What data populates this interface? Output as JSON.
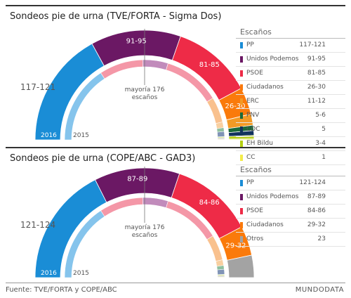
{
  "chart_data": [
    {
      "type": "pie",
      "title": "Sondeos pie de urna (TVE/FORTA - Sigma Dos)",
      "legend_title": "Escaños",
      "majority_label": "mayoría 176",
      "majority_sublabel": "escaños",
      "outer_ring_label": "2016",
      "inner_ring_label": "2015",
      "series": [
        {
          "name": "PP",
          "value_label": "117-121",
          "color": "#1a8dd6",
          "value": 119
        },
        {
          "name": "Unidos Podemos",
          "value_label": "91-95",
          "color": "#6b1864",
          "value": 93
        },
        {
          "name": "PSOE",
          "value_label": "81-85",
          "color": "#ee2b47",
          "value": 83
        },
        {
          "name": "Ciudadanos",
          "value_label": "26-30",
          "color": "#fa7a0b",
          "value": 28
        },
        {
          "name": "ERC",
          "value_label": "11-12",
          "color": "#f29a26",
          "value": 11.5
        },
        {
          "name": "PNV",
          "value_label": "5-6",
          "color": "#1b6a3b",
          "value": 5.5
        },
        {
          "name": "CDC",
          "value_label": "5",
          "color": "#12335d",
          "value": 5
        },
        {
          "name": "EH Bildu",
          "value_label": "3-4",
          "color": "#b5cf12",
          "value": 3.5
        },
        {
          "name": "CC",
          "value_label": "1",
          "color": "#f3ec4a",
          "value": 1
        }
      ],
      "arc_labels": [
        "117-121",
        "91-95",
        "81-85",
        "26-30"
      ],
      "inner_2015": [
        {
          "value": 123,
          "color": "#85c4ec"
        },
        {
          "value": 69,
          "color": "#f497a7"
        },
        {
          "value": 40,
          "color": "#c18bbb"
        },
        {
          "value": 90,
          "color": "#f497a7"
        },
        {
          "value": 40,
          "color": "#f9c18e"
        },
        {
          "value": 9,
          "color": "#f8cfa0"
        },
        {
          "value": 6,
          "color": "#8fc0a0"
        },
        {
          "value": 8,
          "color": "#8094b6"
        },
        {
          "value": 2,
          "color": "#d9e79a"
        },
        {
          "value": 2,
          "color": "#c9c9c9"
        },
        {
          "value": 1,
          "color": "#f7f3a8"
        }
      ]
    },
    {
      "type": "pie",
      "title": "Sondeos pie de urna (COPE/ABC - GAD3)",
      "legend_title": "Escaños",
      "majority_label": "mayoría 176",
      "majority_sublabel": "escaños",
      "outer_ring_label": "2016",
      "inner_ring_label": "2015",
      "series": [
        {
          "name": "PP",
          "value_label": "121-124",
          "color": "#1a8dd6",
          "value": 122.5
        },
        {
          "name": "Unidos Podemos",
          "value_label": "87-89",
          "color": "#6b1864",
          "value": 88
        },
        {
          "name": "PSOE",
          "value_label": "84-86",
          "color": "#ee2b47",
          "value": 85
        },
        {
          "name": "Ciudadanos",
          "value_label": "29-32",
          "color": "#fa7a0b",
          "value": 30.5
        },
        {
          "name": "Otros",
          "value_label": "23",
          "color": "#a3a3a3",
          "value": 23
        }
      ],
      "arc_labels": [
        "121-124",
        "87-89",
        "84-86",
        "29-32"
      ],
      "inner_2015": [
        {
          "value": 123,
          "color": "#85c4ec"
        },
        {
          "value": 69,
          "color": "#f497a7"
        },
        {
          "value": 40,
          "color": "#c18bbb"
        },
        {
          "value": 90,
          "color": "#f497a7"
        },
        {
          "value": 40,
          "color": "#f9c18e"
        },
        {
          "value": 9,
          "color": "#f8cfa0"
        },
        {
          "value": 6,
          "color": "#8fc0a0"
        },
        {
          "value": 8,
          "color": "#8094b6"
        },
        {
          "value": 2,
          "color": "#d9e79a"
        },
        {
          "value": 2,
          "color": "#c9c9c9"
        },
        {
          "value": 1,
          "color": "#f7f3a8"
        }
      ]
    }
  ],
  "footer": {
    "source": "Fuente: TVE/FORTA y COPE/ABC",
    "brand": "MUNDODATA"
  }
}
